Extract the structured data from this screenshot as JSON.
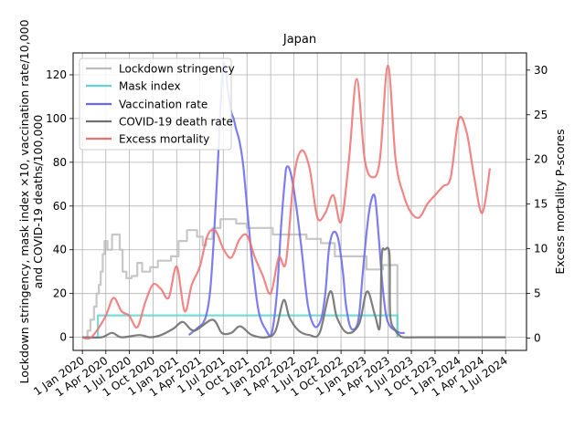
{
  "chart_data": {
    "type": "line",
    "title": "Japan",
    "ylabel_left_line1": "Lockdown stringency, mask index ×10, vaccination rate/10,000",
    "ylabel_left_line2": "and COVID-19 deaths/100,000",
    "ylabel_right": "Excess mortality P-scores",
    "x_ticks": [
      "1 Jan 2020",
      "1 Apr 2020",
      "1 Jul 2020",
      "1 Oct 2020",
      "1 Jan 2021",
      "1 Apr 2021",
      "1 Jul 2021",
      "1 Oct 2021",
      "1 Jan 2022",
      "1 Apr 2022",
      "1 Jul 2022",
      "1 Oct 2022",
      "1 Jan 2023",
      "1 Apr 2023",
      "1 Jul 2023",
      "1 Oct 2023",
      "1 Jan 2024",
      "1 Apr 2024",
      "1 Jul 2024"
    ],
    "xlim": [
      "2019-11-26",
      "2024-09-20"
    ],
    "ylim_left": [
      -6,
      130
    ],
    "yticks_left": [
      0,
      20,
      40,
      60,
      80,
      100,
      120
    ],
    "ylim_right": [
      -1.385,
      31.923
    ],
    "yticks_right": [
      0,
      5,
      10,
      15,
      20,
      25,
      30
    ],
    "grid": true,
    "legend_position": "upper-left",
    "series": [
      {
        "name": "Lockdown stringency",
        "axis": "left",
        "color": "#bdbdbd",
        "step": true,
        "x": [
          "2020-01-01",
          "2020-01-21",
          "2020-02-01",
          "2020-02-15",
          "2020-02-25",
          "2020-03-05",
          "2020-03-12",
          "2020-03-20",
          "2020-03-27",
          "2020-04-07",
          "2020-04-25",
          "2020-05-25",
          "2020-06-05",
          "2020-06-20",
          "2020-07-10",
          "2020-08-01",
          "2020-08-20",
          "2020-09-20",
          "2020-10-20",
          "2020-11-20",
          "2020-12-10",
          "2021-01-08",
          "2021-02-10",
          "2021-03-01",
          "2021-03-21",
          "2021-04-12",
          "2021-04-25",
          "2021-05-20",
          "2021-06-20",
          "2021-07-12",
          "2021-08-20",
          "2021-09-30",
          "2021-10-31",
          "2021-12-01",
          "2022-01-09",
          "2022-02-01",
          "2022-03-21",
          "2022-04-15",
          "2022-05-20",
          "2022-06-15",
          "2022-07-15",
          "2022-09-07",
          "2022-10-11",
          "2022-11-15",
          "2023-01-08",
          "2023-03-13",
          "2023-04-08",
          "2023-05-08"
        ],
        "y": [
          0,
          3,
          8,
          14,
          20,
          24,
          30,
          38,
          44,
          40,
          47,
          40,
          30,
          27,
          28,
          34,
          30,
          32,
          35,
          35,
          37,
          44,
          49,
          49,
          46,
          42,
          45,
          50,
          54,
          54,
          52,
          50,
          50,
          50,
          47,
          47,
          47,
          47,
          45,
          45,
          43,
          37,
          37,
          37,
          31,
          33,
          33,
          0
        ]
      },
      {
        "name": "Mask index",
        "axis": "left",
        "color": "#5fd6d1",
        "step": true,
        "x": [
          "2020-01-01",
          "2020-03-01",
          "2023-03-13",
          "2023-05-08"
        ],
        "y": [
          0,
          10,
          10,
          0
        ]
      },
      {
        "name": "Vaccination rate",
        "axis": "left",
        "color": "#6666ee",
        "step": false,
        "x": [
          "2021-02-17",
          "2021-03-20",
          "2021-04-20",
          "2021-05-10",
          "2021-05-25",
          "2021-06-10",
          "2021-06-22",
          "2021-07-01",
          "2021-07-10",
          "2021-07-20",
          "2021-08-01",
          "2021-08-10",
          "2021-08-20",
          "2021-09-01",
          "2021-09-15",
          "2021-10-01",
          "2021-10-20",
          "2021-11-15",
          "2021-12-15",
          "2022-01-05",
          "2022-01-25",
          "2022-02-10",
          "2022-02-25",
          "2022-03-05",
          "2022-03-20",
          "2022-04-10",
          "2022-05-01",
          "2022-05-25",
          "2022-06-20",
          "2022-07-15",
          "2022-08-01",
          "2022-08-15",
          "2022-09-01",
          "2022-09-20",
          "2022-10-08",
          "2022-10-20",
          "2022-11-05",
          "2022-11-25",
          "2022-12-10",
          "2022-12-25",
          "2023-01-10",
          "2023-01-25",
          "2023-02-10",
          "2023-02-25",
          "2023-03-10",
          "2023-03-25",
          "2023-04-10",
          "2023-05-01",
          "2023-05-20",
          "2023-06-05"
        ],
        "y": [
          1,
          4,
          8,
          20,
          45,
          80,
          110,
          125,
          122,
          112,
          103,
          100,
          95,
          90,
          80,
          60,
          36,
          12,
          3,
          2,
          20,
          50,
          72,
          78,
          75,
          60,
          40,
          15,
          5,
          8,
          20,
          40,
          48,
          45,
          30,
          15,
          5,
          4,
          10,
          30,
          50,
          62,
          64,
          45,
          25,
          10,
          5,
          3,
          2,
          2
        ]
      },
      {
        "name": "COVID-19 death rate",
        "axis": "left",
        "color": "#707070",
        "step": false,
        "x": [
          "2020-01-01",
          "2020-03-15",
          "2020-04-25",
          "2020-06-01",
          "2020-08-10",
          "2020-09-20",
          "2020-11-01",
          "2020-12-20",
          "2021-01-25",
          "2021-03-10",
          "2021-05-20",
          "2021-06-25",
          "2021-08-01",
          "2021-09-05",
          "2021-10-20",
          "2021-12-15",
          "2022-01-20",
          "2022-02-20",
          "2022-03-15",
          "2022-04-20",
          "2022-06-01",
          "2022-07-10",
          "2022-08-20",
          "2022-09-15",
          "2022-10-25",
          "2022-12-10",
          "2023-01-10",
          "2023-02-10",
          "2023-03-01",
          "2023-03-08",
          "2023-03-20",
          "2023-04-07",
          "2023-04-10",
          "2023-05-01",
          "2023-05-15",
          "2023-06-01",
          "2023-08-01",
          "2024-07-01"
        ],
        "y": [
          0,
          0,
          2,
          0,
          1,
          0,
          1,
          4,
          7,
          3,
          8,
          2,
          2,
          5,
          1,
          0,
          3,
          17,
          9,
          3,
          1,
          2,
          21,
          9,
          2,
          6,
          21,
          10,
          5,
          37,
          40,
          38,
          10,
          3,
          1,
          0,
          0,
          0
        ]
      },
      {
        "name": "Excess mortality",
        "axis": "right",
        "color": "#f07070",
        "step": false,
        "x": [
          "2020-01-05",
          "2020-02-01",
          "2020-03-01",
          "2020-04-01",
          "2020-05-01",
          "2020-06-01",
          "2020-07-01",
          "2020-08-01",
          "2020-09-01",
          "2020-10-01",
          "2020-11-01",
          "2020-12-01",
          "2021-01-01",
          "2021-02-01",
          "2021-03-01",
          "2021-04-01",
          "2021-05-01",
          "2021-06-01",
          "2021-07-01",
          "2021-08-01",
          "2021-09-01",
          "2021-10-01",
          "2021-11-01",
          "2021-12-01",
          "2022-01-01",
          "2022-02-01",
          "2022-03-01",
          "2022-04-01",
          "2022-05-01",
          "2022-06-01",
          "2022-07-01",
          "2022-08-01",
          "2022-09-01",
          "2022-10-01",
          "2022-11-01",
          "2022-12-01",
          "2023-01-01",
          "2023-02-01",
          "2023-03-01",
          "2023-04-01",
          "2023-05-01",
          "2023-06-01",
          "2023-07-01",
          "2023-08-01",
          "2023-09-01",
          "2023-10-01",
          "2023-11-01",
          "2023-12-01",
          "2024-01-01",
          "2024-02-01",
          "2024-03-01",
          "2024-04-01",
          "2024-05-01"
        ],
        "y": [
          0,
          0,
          1,
          2.5,
          4.5,
          3,
          2.5,
          1.2,
          4,
          6,
          5.5,
          4.5,
          8,
          3,
          6,
          8,
          11.5,
          12,
          10,
          9,
          11,
          11.5,
          9,
          7,
          5,
          9,
          8.5,
          18,
          21,
          19,
          13.5,
          14,
          16,
          13,
          20,
          29,
          20,
          18,
          20,
          30.5,
          20,
          16,
          14,
          13.5,
          15,
          16,
          17,
          18,
          24.5,
          23,
          18,
          14,
          19
        ]
      }
    ]
  }
}
